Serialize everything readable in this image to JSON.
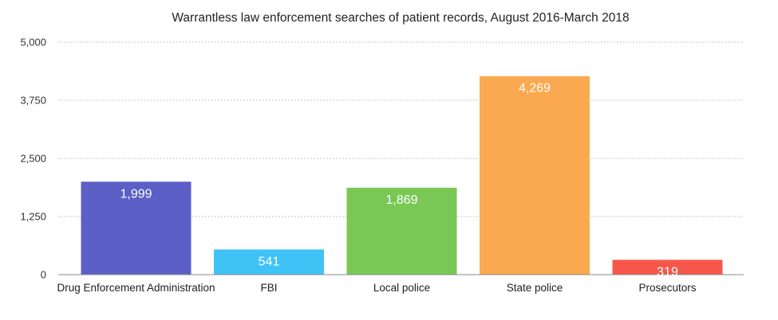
{
  "chart_data": {
    "type": "bar",
    "title": "Warrantless law enforcement searches of patient records, August 2016-March 2018",
    "categories": [
      "Drug Enforcement Administration",
      "FBI",
      "Local police",
      "State police",
      "Prosecutors"
    ],
    "values": [
      1999,
      541,
      1869,
      4269,
      319
    ],
    "value_labels": [
      "1,999",
      "541",
      "1,869",
      "4,269",
      "319"
    ],
    "colors": [
      "#5b5fc6",
      "#3fc3f7",
      "#79c855",
      "#fba950",
      "#f5584a"
    ],
    "ylim": [
      0,
      5000
    ],
    "yticks": [
      0,
      1250,
      2500,
      3750,
      5000
    ],
    "ytick_labels": [
      "0",
      "1,250",
      "2,500",
      "3,750",
      "5,000"
    ],
    "xlabel": "",
    "ylabel": "",
    "grid": true,
    "legend": "none"
  }
}
